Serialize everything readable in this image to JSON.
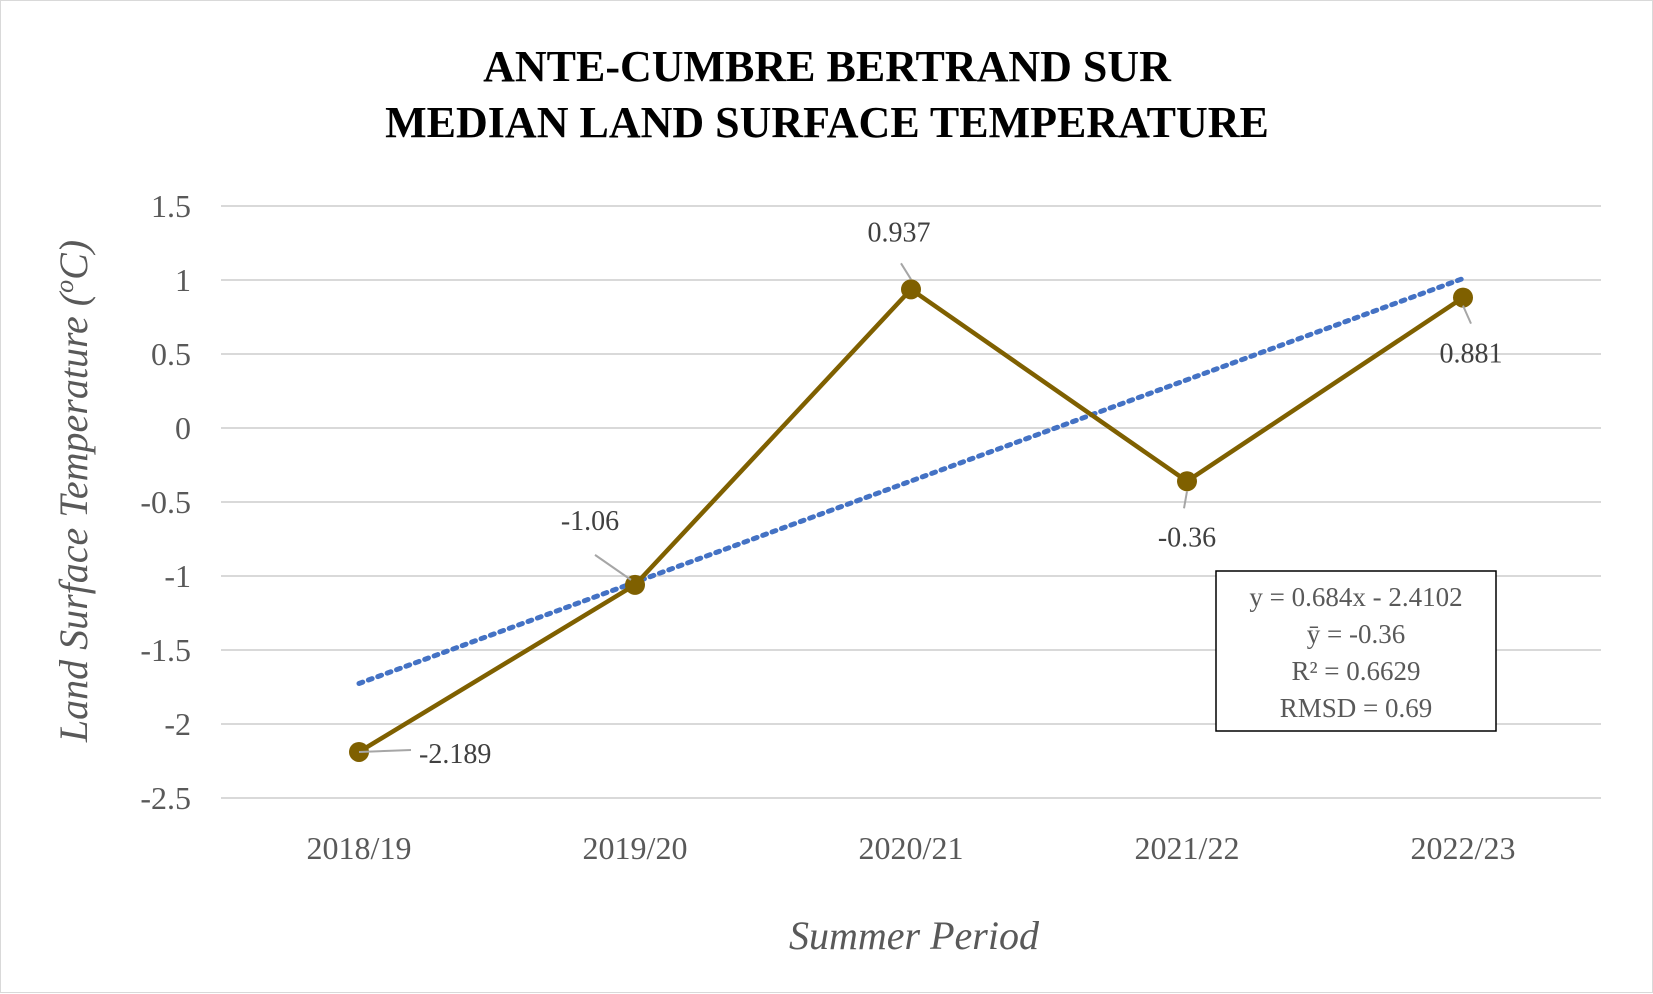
{
  "chart_data": {
    "type": "line",
    "title": [
      "ANTE-CUMBRE BERTRAND SUR",
      "MEDIAN LAND SURFACE TEMPERATURE"
    ],
    "xlabel": "Summer Period",
    "ylabel_main": "Land Surface Temperature (",
    "ylabel_sup": "o",
    "ylabel_tail": "C)",
    "categories": [
      "2018/19",
      "2019/20",
      "2020/21",
      "2021/22",
      "2022/23"
    ],
    "series": [
      {
        "values": [
          -2.189,
          -1.06,
          0.937,
          -0.36,
          0.881
        ],
        "labels": [
          "-2.189",
          "-1.06",
          "0.937",
          "-0.36",
          "0.881"
        ],
        "color": "#7f6000"
      }
    ],
    "trendline": {
      "type": "linear",
      "slope": 0.684,
      "intercept": -2.4102,
      "color": "#4472c4",
      "style": "dotted"
    },
    "stats_box": [
      "y = 0.684x - 2.4102",
      "ȳ = -0.36",
      "R² = 0.6629",
      "RMSD = 0.69"
    ],
    "yticks": [
      "1.5",
      "1",
      "0.5",
      "0",
      "-0.5",
      "-1",
      "-1.5",
      "-2",
      "-2.5"
    ],
    "ylim": [
      -2.5,
      1.5
    ],
    "grid": true,
    "legend": "none",
    "gridline_color": "#d9d9d9"
  }
}
